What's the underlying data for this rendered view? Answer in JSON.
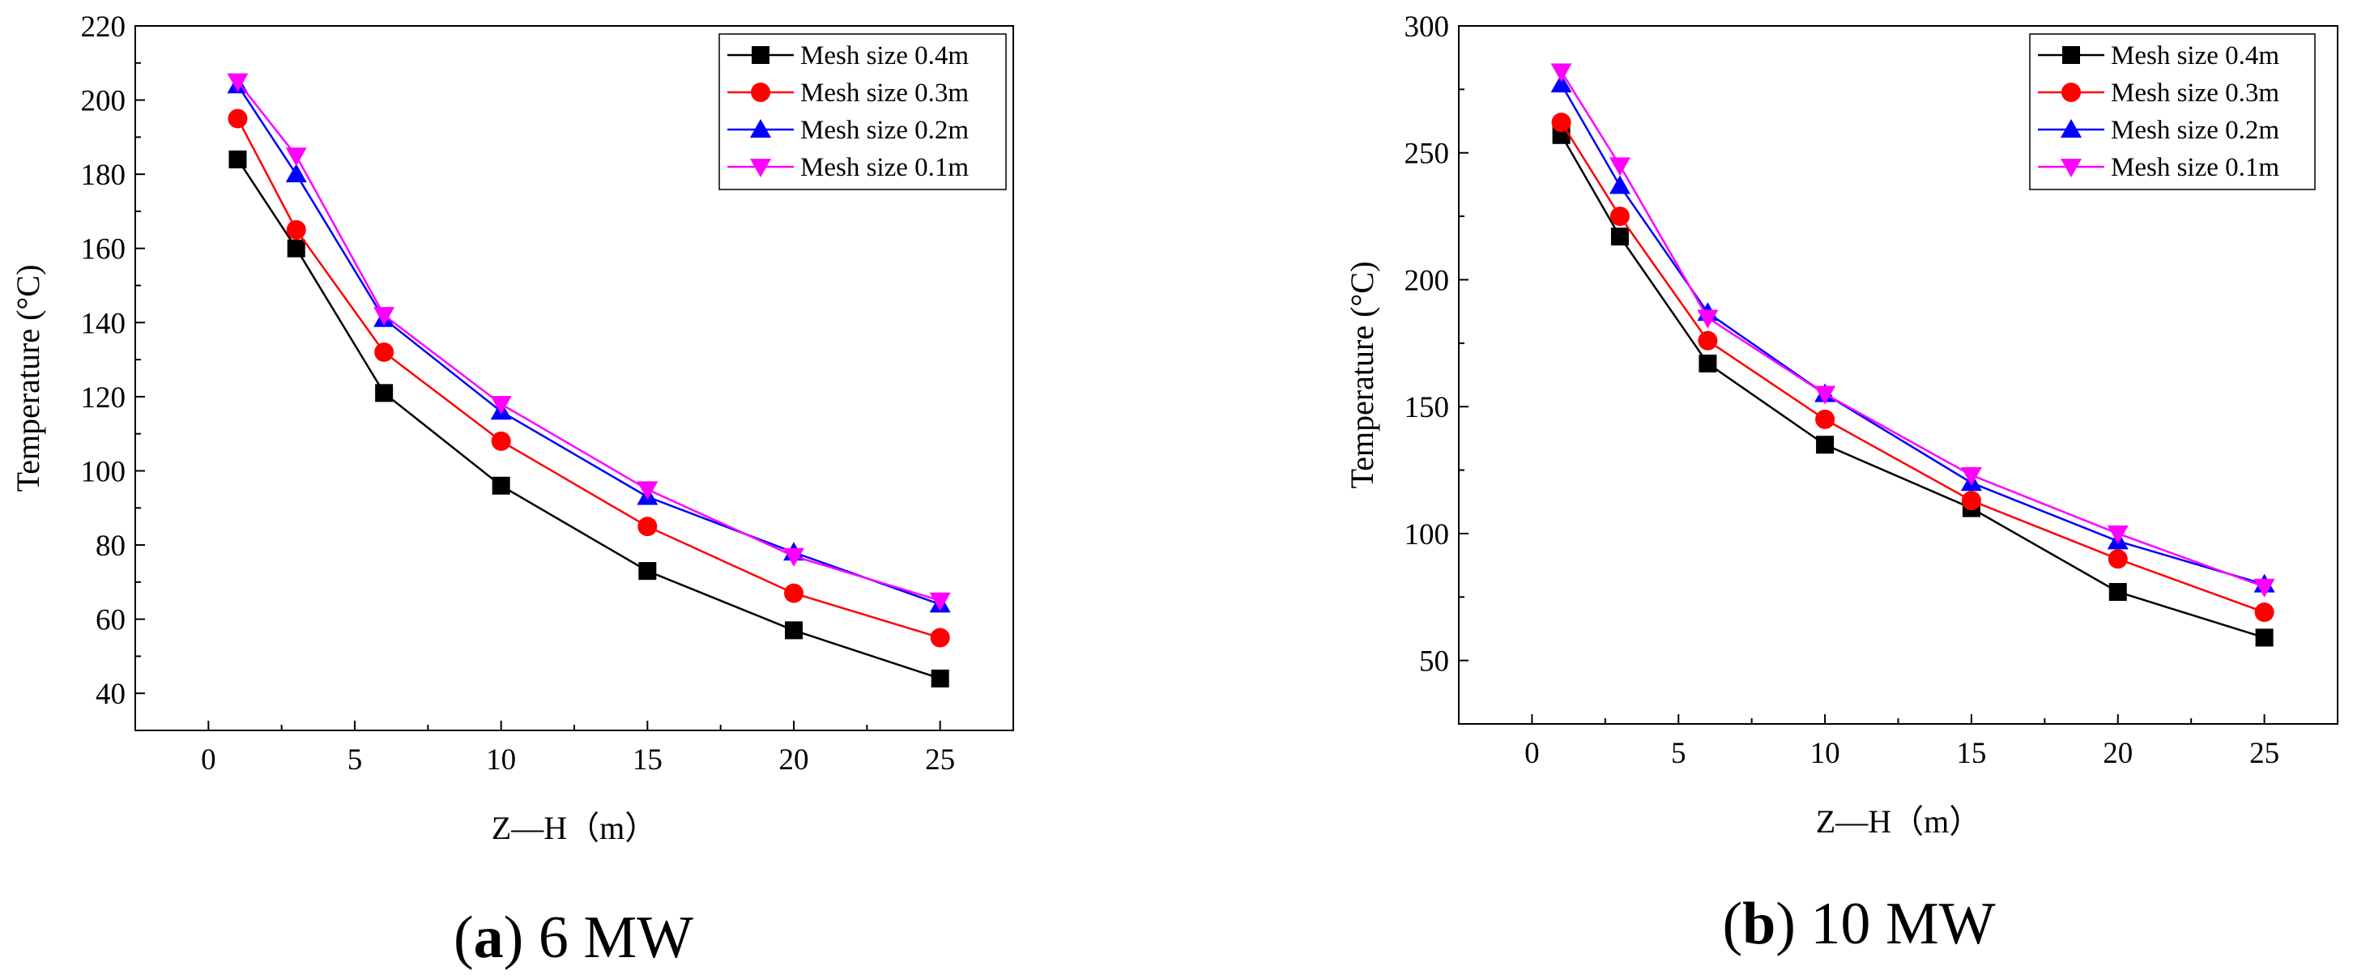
{
  "figure": {
    "captions": [
      {
        "letter": "a",
        "text": "6 MW"
      },
      {
        "letter": "b",
        "text": "10 MW"
      }
    ]
  },
  "chart_data": [
    {
      "type": "line",
      "panel": "a",
      "title": "",
      "xlabel": "Z—H（m）",
      "ylabel": "Temperature (°C)",
      "xlim": [
        -2.5,
        27.5
      ],
      "ylim": [
        30,
        220
      ],
      "xticks": [
        0,
        5,
        10,
        15,
        20,
        25
      ],
      "yticks": [
        40,
        60,
        80,
        100,
        120,
        140,
        160,
        180,
        200,
        220
      ],
      "legend_position": "top-right",
      "grid": false,
      "x": [
        1,
        3,
        6,
        10,
        15,
        20,
        25
      ],
      "series": [
        {
          "name": "Mesh size 0.4m",
          "color": "#000000",
          "marker": "square",
          "values": [
            184,
            160,
            121,
            96,
            73,
            57,
            44
          ]
        },
        {
          "name": "Mesh size 0.3m",
          "color": "#ff0000",
          "marker": "circle",
          "values": [
            195,
            165,
            132,
            108,
            85,
            67,
            55
          ]
        },
        {
          "name": "Mesh size 0.2m",
          "color": "#0000ff",
          "marker": "triangle-up",
          "values": [
            204,
            180,
            141,
            116,
            93,
            78,
            64
          ]
        },
        {
          "name": "Mesh size 0.1m",
          "color": "#ff00ff",
          "marker": "triangle-down",
          "values": [
            205,
            185,
            142,
            118,
            95,
            77,
            65
          ]
        }
      ]
    },
    {
      "type": "line",
      "panel": "b",
      "title": "",
      "xlabel": "Z—H（m）",
      "ylabel": "Temperature (°C)",
      "xlim": [
        -2.5,
        27.5
      ],
      "ylim": [
        25,
        300
      ],
      "xticks": [
        0,
        5,
        10,
        15,
        20,
        25
      ],
      "yticks": [
        50,
        100,
        150,
        200,
        250,
        300
      ],
      "legend_position": "top-right",
      "grid": false,
      "x": [
        1,
        3,
        6,
        10,
        15,
        20,
        25
      ],
      "series": [
        {
          "name": "Mesh size 0.4m",
          "color": "#000000",
          "marker": "square",
          "values": [
            257,
            217,
            167,
            135,
            110,
            77,
            59
          ]
        },
        {
          "name": "Mesh size 0.3m",
          "color": "#ff0000",
          "marker": "circle",
          "values": [
            262,
            225,
            176,
            145,
            113,
            90,
            69
          ]
        },
        {
          "name": "Mesh size 0.2m",
          "color": "#0000ff",
          "marker": "triangle-up",
          "values": [
            277,
            237,
            187,
            155,
            120,
            97,
            80
          ]
        },
        {
          "name": "Mesh size 0.1m",
          "color": "#ff00ff",
          "marker": "triangle-down",
          "values": [
            282,
            245,
            185,
            155,
            123,
            100,
            79
          ]
        }
      ]
    }
  ]
}
